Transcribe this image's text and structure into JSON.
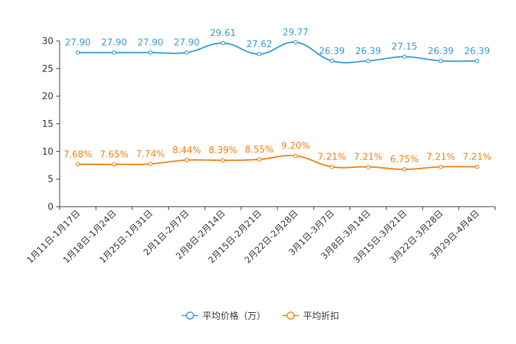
{
  "chart_data": {
    "type": "line",
    "title": "",
    "xlabel": "",
    "ylabel": "",
    "ylim": [
      0,
      30
    ],
    "yticks": [
      0,
      5,
      10,
      15,
      20,
      25,
      30
    ],
    "grid": false,
    "legend_position": "bottom-center",
    "categories": [
      "1月11日-1月17日",
      "1月18日-1月24日",
      "1月25日-1月31日",
      "2月1日-2月7日",
      "2月8日-2月14日",
      "2月15日-2月21日",
      "2月22日-2月28日",
      "3月1日-3月7日",
      "3月8日-3月14日",
      "3月15日-3月21日",
      "3月22日-3月28日",
      "3月29日-4月4日"
    ],
    "series": [
      {
        "name": "平均价格（万）",
        "color": "#3a9bd0",
        "values": [
          27.9,
          27.9,
          27.9,
          27.9,
          29.61,
          27.62,
          29.77,
          26.39,
          26.39,
          27.15,
          26.39,
          26.39
        ],
        "labels": [
          "27.90",
          "27.90",
          "27.90",
          "27.90",
          "29.61",
          "27.62",
          "29.77",
          "26.39",
          "26.39",
          "27.15",
          "26.39",
          "26.39"
        ]
      },
      {
        "name": "平均折扣",
        "color": "#f08016",
        "values": [
          7.68,
          7.65,
          7.74,
          8.44,
          8.39,
          8.55,
          9.2,
          7.21,
          7.21,
          6.75,
          7.21,
          7.21
        ],
        "labels": [
          "7.68%",
          "7.65%",
          "7.74%",
          "8.44%",
          "8.39%",
          "8.55%",
          "9.20%",
          "7.21%",
          "7.21%",
          "6.75%",
          "7.21%",
          "7.21%"
        ]
      }
    ]
  }
}
